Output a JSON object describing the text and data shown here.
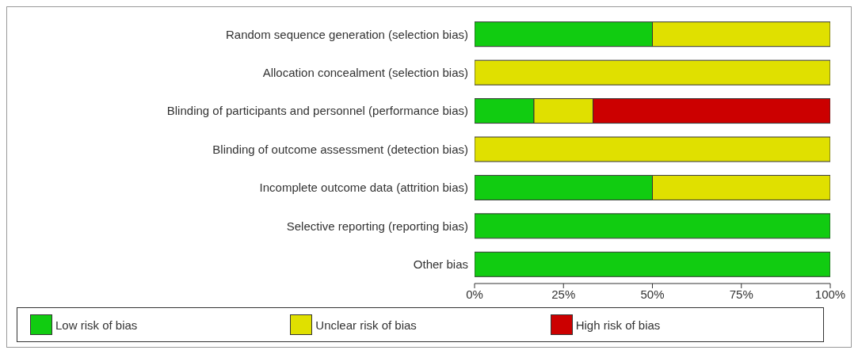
{
  "chart_data": {
    "type": "bar",
    "orientation": "horizontal",
    "stacked": true,
    "categories": [
      "Random sequence generation (selection bias)",
      "Allocation concealment (selection bias)",
      "Blinding of participants and personnel (performance bias)",
      "Blinding of outcome assessment (detection bias)",
      "Incomplete outcome data (attrition bias)",
      "Selective reporting (reporting bias)",
      "Other bias"
    ],
    "series": [
      {
        "name": "Low risk of bias",
        "color": "#11cc11",
        "values": [
          50,
          0,
          16.7,
          0,
          50,
          100,
          100
        ]
      },
      {
        "name": "Unclear risk of bias",
        "color": "#e0e000",
        "values": [
          50,
          100,
          16.6,
          100,
          50,
          0,
          0
        ]
      },
      {
        "name": "High risk of bias",
        "color": "#cc0000",
        "values": [
          0,
          0,
          66.7,
          0,
          0,
          0,
          0
        ]
      }
    ],
    "xlim": [
      0,
      100
    ],
    "xticks": [
      {
        "value": 0,
        "label": "0%"
      },
      {
        "value": 25,
        "label": "25%"
      },
      {
        "value": 50,
        "label": "50%"
      },
      {
        "value": 75,
        "label": "75%"
      },
      {
        "value": 100,
        "label": "100%"
      }
    ],
    "legend": "bottom",
    "grid": false
  }
}
